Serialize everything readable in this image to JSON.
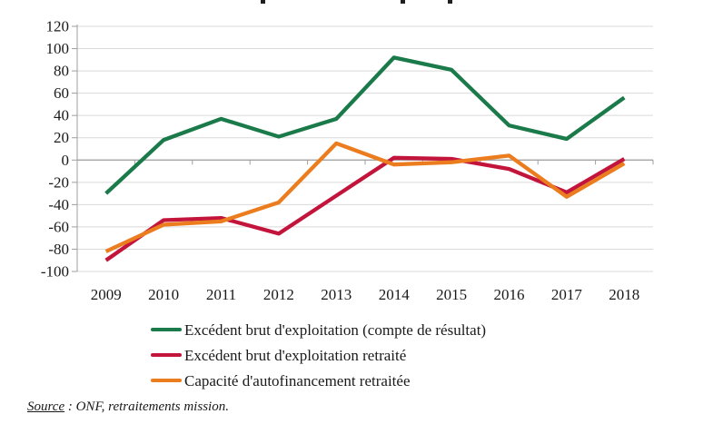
{
  "chart_data": {
    "type": "line",
    "categories": [
      "2009",
      "2010",
      "2011",
      "2012",
      "2013",
      "2014",
      "2015",
      "2016",
      "2017",
      "2018"
    ],
    "series": [
      {
        "name": "Excédent brut d'exploitation (compte de résultat)",
        "color": "#1B7A4A",
        "values": [
          -30,
          18,
          37,
          21,
          37,
          92,
          81,
          31,
          19,
          56
        ]
      },
      {
        "name": "Excédent brut d'exploitation retraité",
        "color": "#C3143C",
        "values": [
          -90,
          -54,
          -52,
          -66,
          -32,
          2,
          1,
          -8,
          -29,
          1
        ]
      },
      {
        "name": "Capacité d'autofinancement retraitée",
        "color": "#EC7D1F",
        "values": [
          -82,
          -58,
          -55,
          -38,
          15,
          -4,
          -2,
          4,
          -33,
          -3
        ]
      }
    ],
    "ylim": [
      -100,
      120
    ],
    "yticks": [
      120,
      100,
      80,
      60,
      40,
      20,
      0,
      -20,
      -40,
      -60,
      -80,
      -100
    ],
    "xlabel": "",
    "ylabel": "",
    "grid": true,
    "legend_position": "bottom-left"
  },
  "source": {
    "label": "Source",
    "text": " : ONF, retraitements mission."
  },
  "style_colors": {
    "grid": "#D9D9D9",
    "axis": "#9E9E9E",
    "text": "#1A1A1A"
  }
}
